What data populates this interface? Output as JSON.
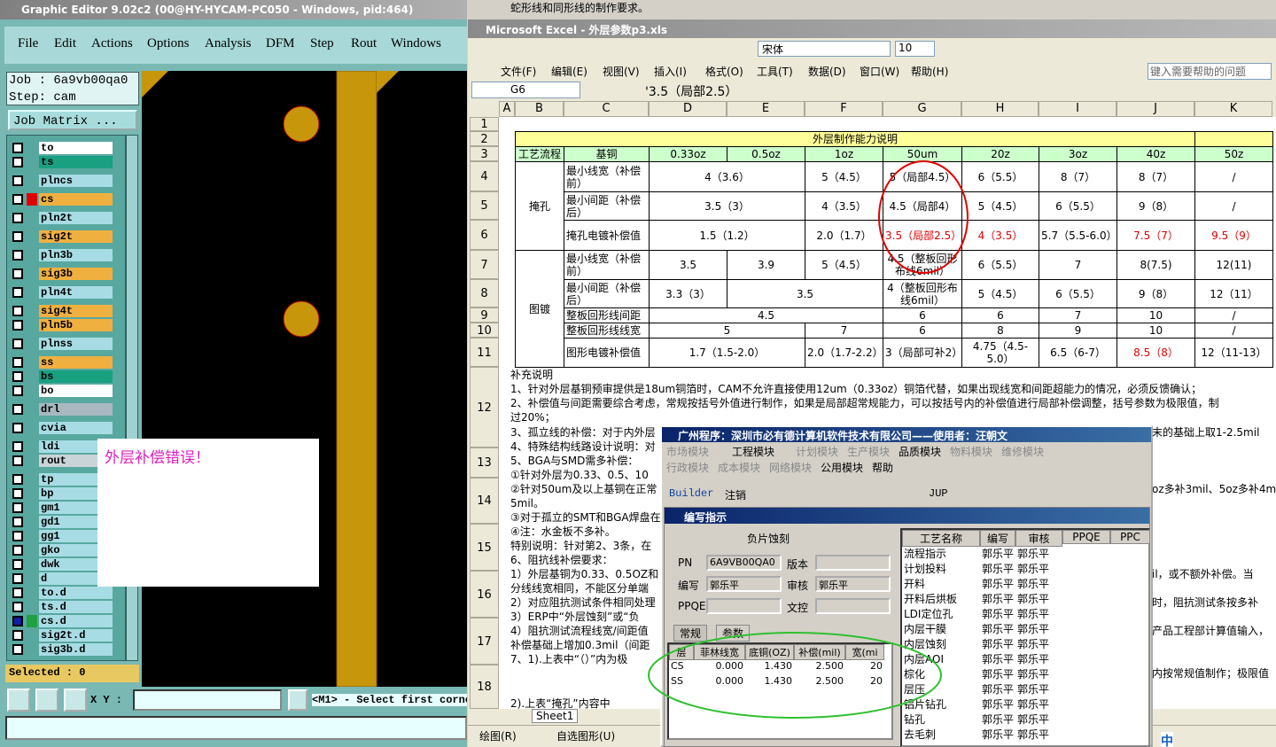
{
  "graphic_editor": {
    "title": "Graphic Editor 9.02c2 (00@HY-HYCAM-PC050 - Windows, pid:464)",
    "menu": [
      "File",
      "Edit",
      "Actions",
      "Options",
      "Analysis",
      "DFM",
      "Step",
      "Rout",
      "Windows"
    ],
    "job": "Job : 6a9vb00qa0",
    "step": "Step: cam",
    "job_matrix": "Job Matrix ...",
    "layers": [
      {
        "name": "to",
        "color": "#ffffff"
      },
      {
        "name": "ts",
        "color": "#18a080"
      },
      {
        "name": "plncs",
        "color": "#a8dce4"
      },
      {
        "name": "cs",
        "color": "#f0b040"
      },
      {
        "name": "pln2t",
        "color": "#a8dce4"
      },
      {
        "name": "sig2t",
        "color": "#f0b040"
      },
      {
        "name": "pln3b",
        "color": "#a8dce4"
      },
      {
        "name": "sig3b",
        "color": "#f0b040"
      },
      {
        "name": "pln4t",
        "color": "#a8dce4"
      },
      {
        "name": "sig4t",
        "color": "#f0b040"
      },
      {
        "name": "pln5b",
        "color": "#f0b040"
      },
      {
        "name": "plnss",
        "color": "#a8dce4"
      },
      {
        "name": "ss",
        "color": "#f0b040"
      },
      {
        "name": "bs",
        "color": "#18a080"
      },
      {
        "name": "bo",
        "color": "#ffffff"
      },
      {
        "name": "drl",
        "color": "#a8b8c0"
      },
      {
        "name": "cvia",
        "color": "#a8dce4"
      },
      {
        "name": "ldi",
        "color": "#a8dce4"
      },
      {
        "name": "rout",
        "color": "#c8d4d8"
      },
      {
        "name": "tp",
        "color": "#a8dce4"
      },
      {
        "name": "bp",
        "color": "#a8dce4"
      },
      {
        "name": "gm1",
        "color": "#a8dce4"
      },
      {
        "name": "gd1",
        "color": "#a8dce4"
      },
      {
        "name": "gg1",
        "color": "#a8dce4"
      },
      {
        "name": "gko",
        "color": "#a8dce4"
      },
      {
        "name": "dwk",
        "color": "#a8dce4"
      },
      {
        "name": "d",
        "color": "#a8dce4"
      },
      {
        "name": "to.d",
        "color": "#a8dce4"
      },
      {
        "name": "ts.d",
        "color": "#a8dce4"
      },
      {
        "name": "cs.d",
        "color": "#a8dce4"
      },
      {
        "name": "sig2t.d",
        "color": "#a8dce4"
      },
      {
        "name": "sig3b.d",
        "color": "#a8dce4"
      }
    ],
    "message": "外层补偿错误！",
    "selected": "Selected : 0",
    "xy_label": "X Y :",
    "status": "<M1> - Select first corne"
  },
  "excel": {
    "title": "Microsoft Excel - 外层参数p3.xls",
    "font": "宋体",
    "font_size": "10",
    "help": "键入需要帮助的问题",
    "menu": [
      "文件(F)",
      "编辑(E)",
      "视图(V)",
      "插入(I)",
      "格式(O)",
      "工具(T)",
      "数据(D)",
      "窗口(W)",
      "帮助(H)"
    ],
    "cell": "G6",
    "formula": "'3.5（局部2.5）",
    "columns": [
      "A",
      "B",
      "C",
      "D",
      "E",
      "F",
      "G",
      "H",
      "I",
      "J",
      "K"
    ],
    "row_numbers": [
      "1",
      "2",
      "3",
      "4",
      "5",
      "6",
      "7",
      "8",
      "9",
      "10",
      "11",
      "12",
      "13",
      "14",
      "15",
      "16",
      "17",
      "18"
    ],
    "table": [
      [
        "外层制作能力说明"
      ],
      [
        "工艺流程",
        "基铜",
        "0.33oz",
        "0.5oz",
        "1oz",
        "50um",
        "20z",
        "3oz",
        "40z",
        "50z"
      ],
      [
        "掩孔",
        "最小线宽（补偿前）",
        "4（3.6）",
        "5（4.5）",
        "5（局部4.5）",
        "6（5.5）",
        "8（7）",
        "8（7）",
        "/"
      ],
      [
        "最小间距（补偿后）",
        "3.5（3）",
        "4（3.5）",
        "4.5（局部4）",
        "5（4.5）",
        "6（5.5）",
        "9（8）",
        "/"
      ],
      [
        "掩孔电镀补偿值",
        "1.5（1.2）",
        "2.0（1.7）",
        "3.5（局部2.5）",
        "4（3.5）",
        "5.7（5.5-6.0）",
        "7.5（7）",
        "9.5（9）"
      ],
      [
        "图镀",
        "最小线宽（补偿前）",
        "3.5",
        "3.9",
        "5（4.5）",
        "4.5（整板回形布线6mil）",
        "6（5.5）",
        "7",
        "8(7.5)",
        "12(11)"
      ],
      [
        "最小间距（补偿后）",
        "3.3（3）",
        "3.5",
        "4（整板回形布线6mil）",
        "5（4.5）",
        "6（5.5）",
        "9（8）",
        "12（11）"
      ],
      [
        "整板回形线间距",
        "4.5",
        "6",
        "6",
        "7",
        "10",
        "/"
      ],
      [
        "整板回形线线宽",
        "5",
        "7",
        "6",
        "8",
        "9",
        "10",
        "/"
      ],
      [
        "图形电镀补偿值",
        "1.7（1.5-2.0）",
        "2.0（1.7-2.2）",
        "3（局部可补2）",
        "4.75（4.5-5.0）",
        "6.5（6-7）",
        "8.5（8）",
        "12（11-13）"
      ]
    ],
    "notes": [
      "补充说明",
      "1、针对外层基铜预审提供是18um铜箔时，CAM不允许直接使用12um（0.33oz）铜箔代替，如果出现线宽和间距超能力的情况，必须反馈确认；",
      "2、补偿值与间距需要综合考虑，常规按括号外值进行制作，如果是局部超常规能力，可以按括号内的补偿值进行局部补偿调整，括号参数为极限值，制",
      "过20%；",
      "3、孤立线的补偿：对于内外层",
      "4、特殊结构线路设计说明：对",
      "5、BGA与SMD需多补偿：",
      "①针对外层为0.33、0.5、10",
      "②针对50um及以上基铜在正常",
      "5mil。",
      "③对于孤立的SMT和BGA焊盘在",
      "④注：水金板不多补。",
      "特别说明：针对第2、3条，在",
      "6、阻抗线补偿要求：",
      "1）外层基铜为0.33、0.5OZ和",
      "分线线宽相同，不能区分单端",
      "2）对应阻抗测试条件相同处理",
      "3）ERP中“外层蚀刻”或“负",
      "4）阻抗测试流程线宽/间距值",
      "补偿基础上增加0.3mil（间距",
      "7、1).上表中“（）”内为极",
      "   2).上表“掩孔”内容中",
      "蛇形线和同形线的制作要求。"
    ],
    "notes_right": [
      "末的基础上取1-2.5mil",
      "oz多补3mil、5oz多补4m",
      "il，或不额外补偿。当",
      "时，阻抗测试条按多补",
      "产品工程部计算值输入，",
      "内按常规值制作；极限值"
    ],
    "sheet": "Sheet1",
    "draw": "绘图(R)",
    "autoshape": "自选图形(U)"
  },
  "dialog": {
    "title": "广州程序：深圳市必有德计算机软件技术有限公司——使用者：汪朝文",
    "menu1": [
      "市场模块",
      "工程模块",
      "计划模块",
      "生产模块",
      "品质模块",
      "物料模块",
      "维修模块"
    ],
    "menu2": [
      "行政模块",
      "成本模块",
      "网络模块",
      "公用模块",
      "帮助"
    ],
    "toolbar": [
      "Builder",
      "注销",
      "JUP"
    ],
    "window_title": "编写指示",
    "section": "负片蚀刻",
    "fields": [
      {
        "label": "PN",
        "value": "6A9VB00QA0"
      },
      {
        "label": "版本"
      },
      {
        "label": "编写",
        "value": "郭乐平"
      },
      {
        "label": "审核",
        "value": "郭乐平"
      },
      {
        "label": "PPQE"
      },
      {
        "label": "文控"
      }
    ],
    "tabs": [
      "常规",
      "参数"
    ],
    "param_headers": [
      "层",
      "菲林线宽",
      "底铜(OZ)",
      "补偿(mil)",
      "宽(mi"
    ],
    "param_rows": [
      [
        "CS",
        "0.000",
        "1.430",
        "2.500",
        "20"
      ],
      [
        "SS",
        "0.000",
        "1.430",
        "2.500",
        "20"
      ]
    ],
    "process_headers": [
      "工艺名称",
      "编写",
      "审核",
      "PPQE",
      "PPC"
    ],
    "process_rows": [
      [
        "流程指示",
        "郭乐平",
        "郭乐平"
      ],
      [
        "计划投料",
        "郭乐平",
        "郭乐平"
      ],
      [
        "开料",
        "郭乐平",
        "郭乐平"
      ],
      [
        "开料后烘板",
        "郭乐平",
        "郭乐平"
      ],
      [
        "LDI定位孔",
        "郭乐平",
        "郭乐平"
      ],
      [
        "内层干膜",
        "郭乐平",
        "郭乐平"
      ],
      [
        "内层蚀刻",
        "郭乐平",
        "郭乐平"
      ],
      [
        "内层AOI",
        "郭乐平",
        "郭乐平"
      ],
      [
        "棕化",
        "郭乐平",
        "郭乐平"
      ],
      [
        "层压",
        "郭乐平",
        "郭乐平"
      ],
      [
        "铝片钻孔",
        "郭乐平",
        "郭乐平"
      ],
      [
        "钻孔",
        "郭乐平",
        "郭乐平"
      ],
      [
        "去毛刺",
        "郭乐平",
        "郭乐平"
      ]
    ]
  },
  "tray": "中"
}
